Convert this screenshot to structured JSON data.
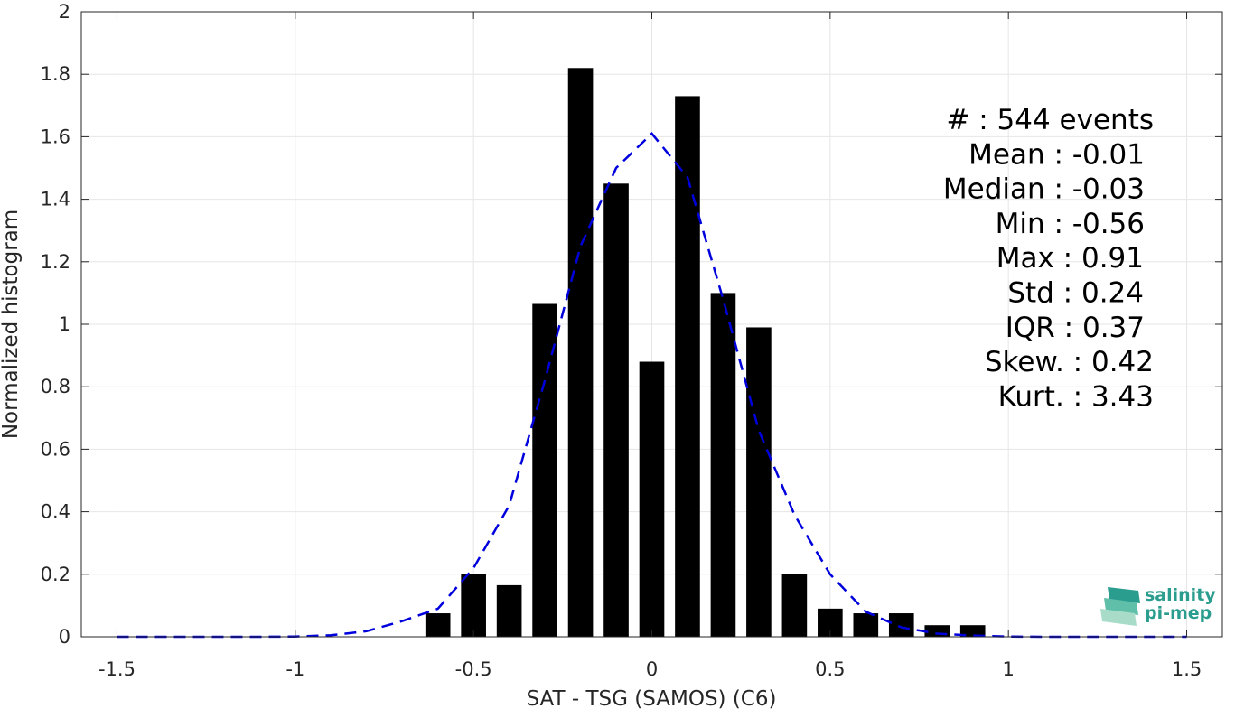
{
  "chart_data": {
    "type": "bar",
    "xlabel": "SAT - TSG (SAMOS) (C6)",
    "ylabel": "Normalized histogram",
    "xlim": [
      -1.6,
      1.6
    ],
    "ylim": [
      0,
      2
    ],
    "xticks": [
      -1.5,
      -1,
      -0.5,
      0,
      0.5,
      1,
      1.5
    ],
    "xtick_labels": [
      "-1.5",
      "-1",
      "-0.5",
      "0",
      "0.5",
      "1",
      "1.5"
    ],
    "yticks": [
      0,
      0.2,
      0.4,
      0.6,
      0.8,
      1,
      1.2,
      1.4,
      1.6,
      1.8,
      2
    ],
    "ytick_labels": [
      "0",
      "0.2",
      "0.4",
      "0.6",
      "0.8",
      "1",
      "1.2",
      "1.4",
      "1.6",
      "1.8",
      "2"
    ],
    "grid": true,
    "bar_width": 0.07,
    "bar_color": "#000000",
    "bars": {
      "x": [
        -0.6,
        -0.5,
        -0.4,
        -0.3,
        -0.2,
        -0.1,
        0.0,
        0.1,
        0.2,
        0.3,
        0.4,
        0.5,
        0.6,
        0.7,
        0.8,
        0.9
      ],
      "values": [
        0.075,
        0.2,
        0.165,
        1.065,
        1.82,
        1.45,
        0.88,
        1.73,
        1.1,
        0.99,
        0.2,
        0.09,
        0.075,
        0.075,
        0.037,
        0.037
      ]
    },
    "fit_curve": {
      "style": "dashed",
      "color": "#0000dd",
      "x": [
        -1.5,
        -1.4,
        -1.3,
        -1.2,
        -1.1,
        -1.0,
        -0.9,
        -0.8,
        -0.7,
        -0.6,
        -0.5,
        -0.4,
        -0.3,
        -0.2,
        -0.1,
        0.0,
        0.1,
        0.2,
        0.3,
        0.4,
        0.5,
        0.6,
        0.7,
        0.8,
        0.9,
        1.0,
        1.1,
        1.2,
        1.3,
        1.4,
        1.5
      ],
      "y": [
        0,
        0,
        0,
        0,
        0,
        0.001,
        0.005,
        0.018,
        0.05,
        0.09,
        0.22,
        0.42,
        0.82,
        1.25,
        1.5,
        1.61,
        1.47,
        1.08,
        0.66,
        0.39,
        0.2,
        0.08,
        0.03,
        0.01,
        0.004,
        0.001,
        0,
        0,
        0,
        0,
        0
      ]
    },
    "annotations": [
      "#  : 544 events",
      "Mean : -0.01",
      "Median : -0.03",
      "Min : -0.56",
      "Max : 0.91",
      "Std : 0.24",
      "IQR : 0.37",
      "Skew. : 0.42",
      "Kurt. : 3.43"
    ]
  },
  "logo": {
    "line1": "salinity",
    "line2": "pi-mep",
    "color": "#2a9d8f"
  }
}
